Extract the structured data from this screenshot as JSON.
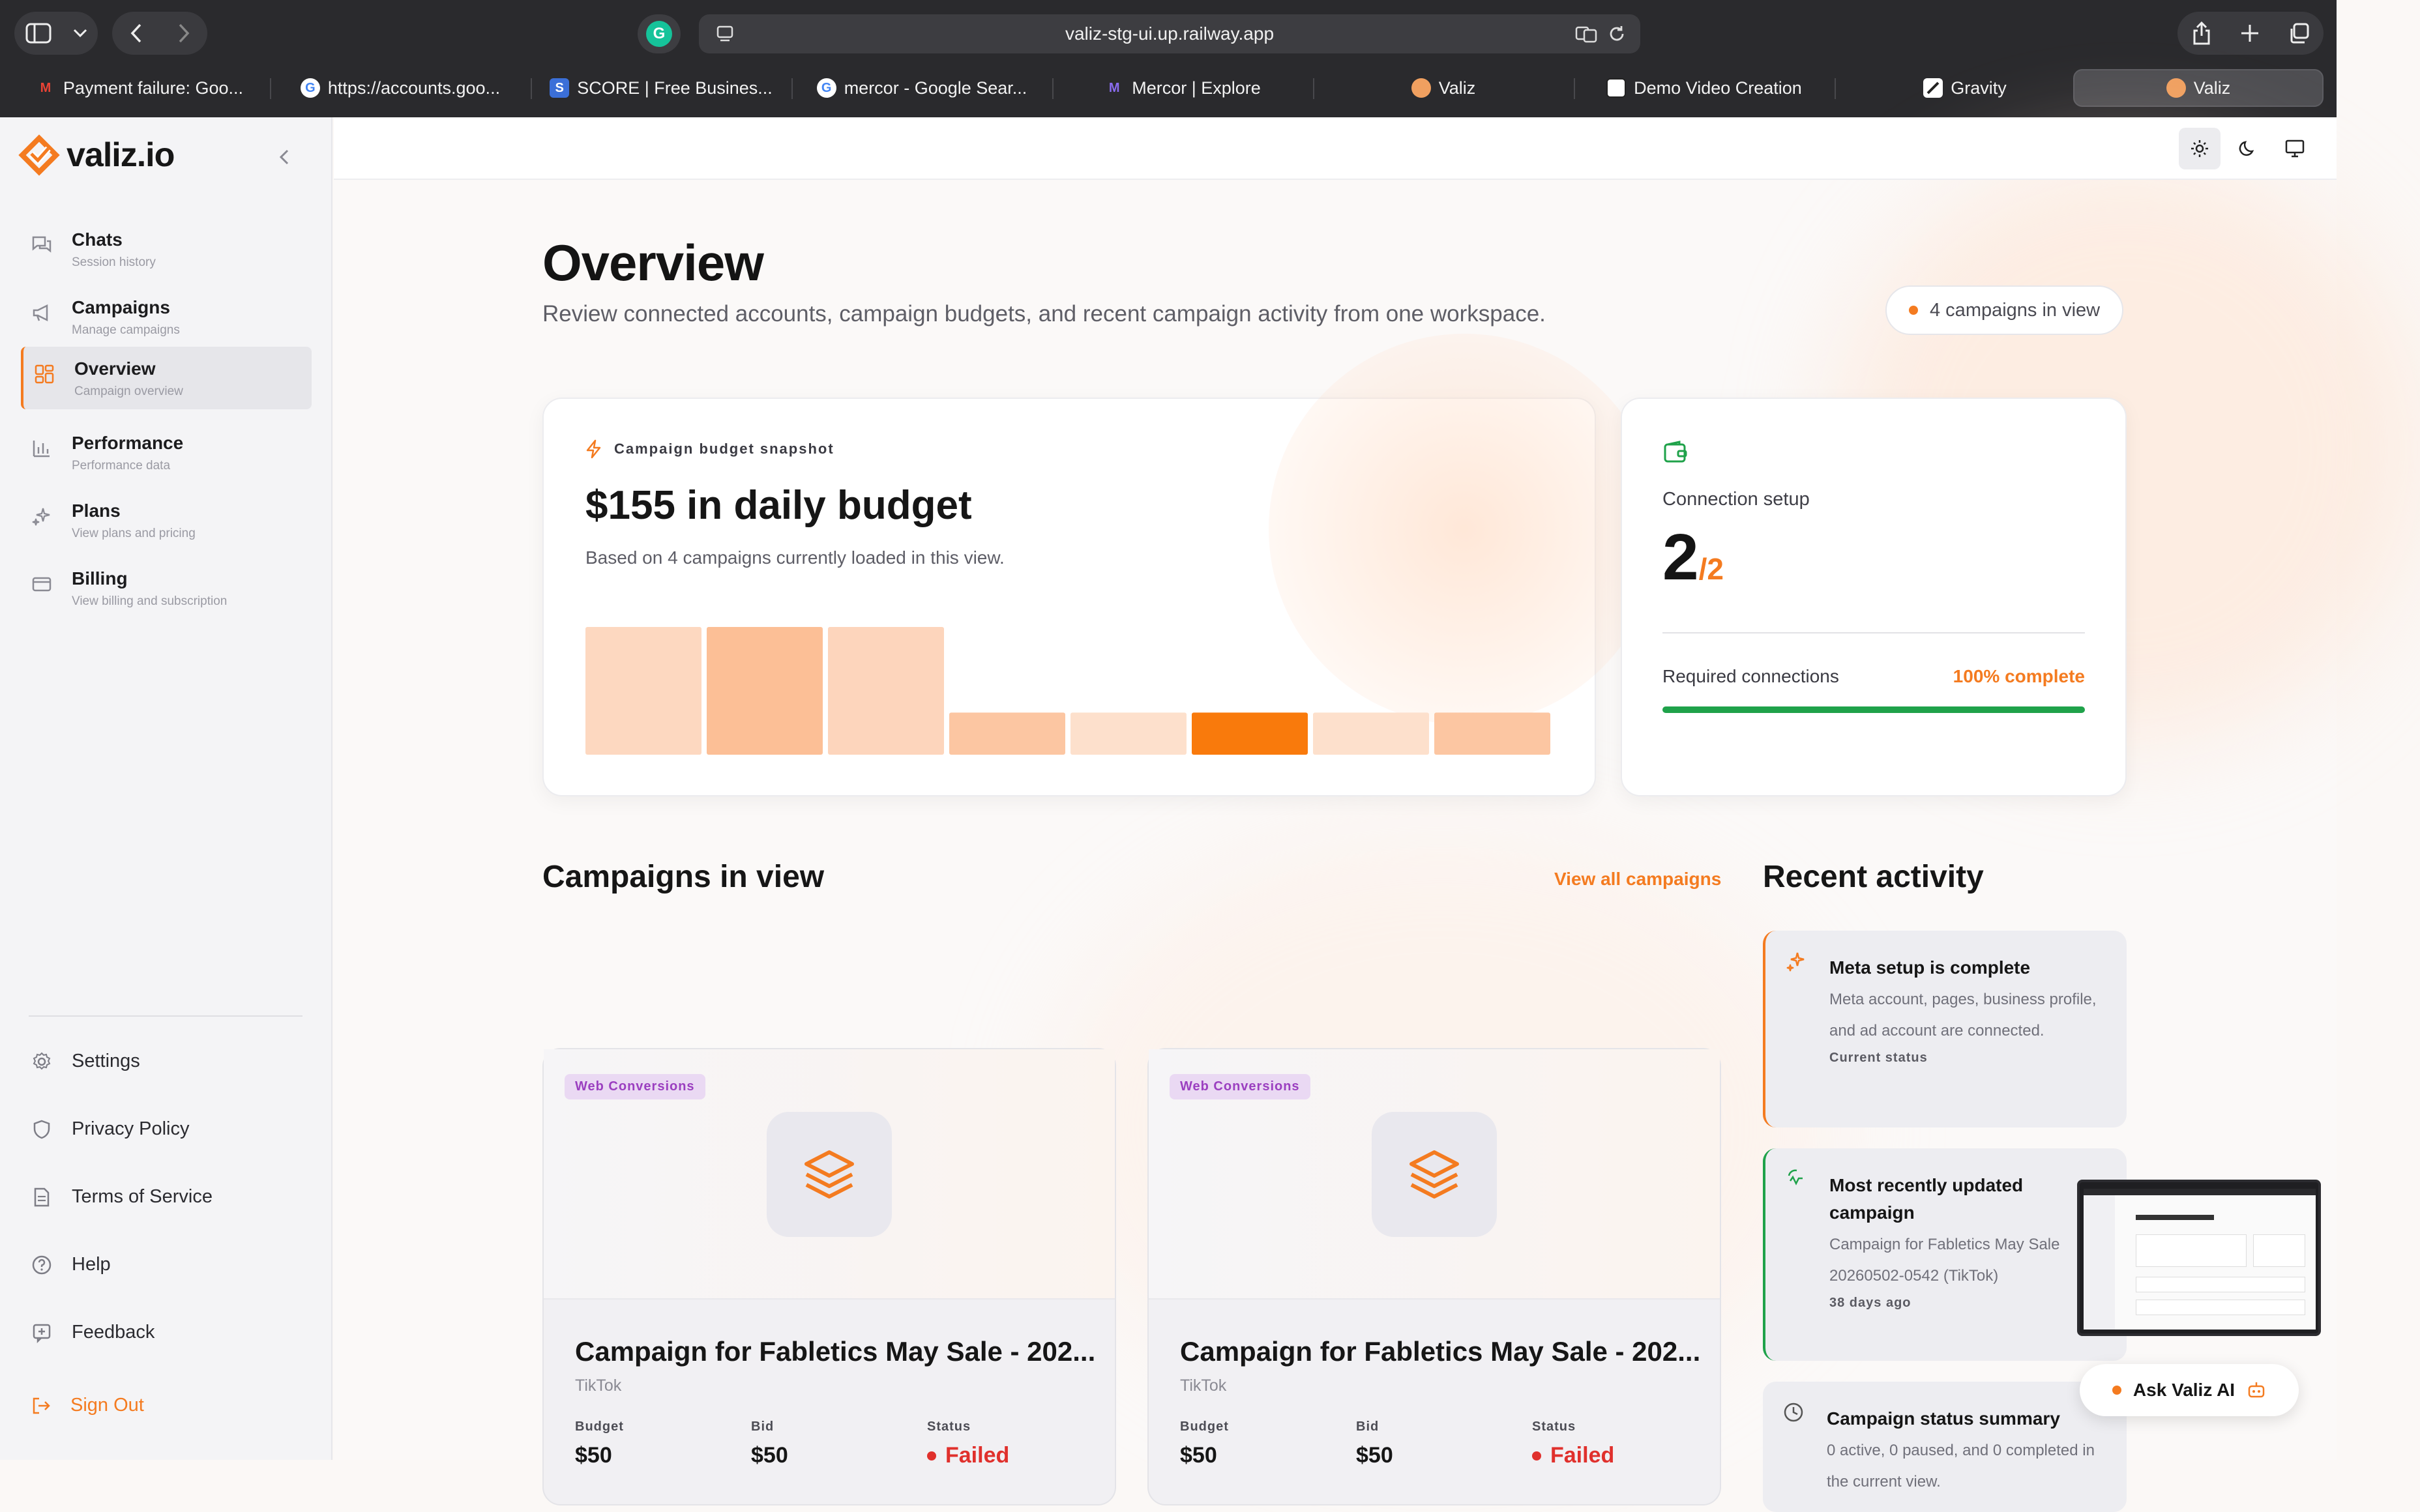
{
  "browser": {
    "url": "valiz-stg-ui.up.railway.app",
    "tabs": [
      {
        "label": "Payment failure: Goo...",
        "favicon": "gmail-icon"
      },
      {
        "label": "https://accounts.goo...",
        "favicon": "google-icon"
      },
      {
        "label": "SCORE | Free Busines...",
        "favicon": "score-icon"
      },
      {
        "label": "mercor - Google Sear...",
        "favicon": "google-icon"
      },
      {
        "label": "Mercor | Explore",
        "favicon": "mercor-icon"
      },
      {
        "label": "Valiz",
        "favicon": "valiz-icon"
      },
      {
        "label": "Demo Video Creation",
        "favicon": "openai-icon"
      },
      {
        "label": "Gravity",
        "favicon": "gravity-icon"
      },
      {
        "label": "Valiz",
        "favicon": "valiz-icon",
        "active": true
      }
    ]
  },
  "sidebar": {
    "brand": "valiz.io",
    "items": [
      {
        "label": "Chats",
        "sub": "Session history",
        "icon": "chat-icon"
      },
      {
        "label": "Campaigns",
        "sub": "Manage campaigns",
        "icon": "megaphone-icon"
      },
      {
        "label": "Overview",
        "sub": "Campaign overview",
        "icon": "grid-icon",
        "active": true
      },
      {
        "label": "Performance",
        "sub": "Performance data",
        "icon": "bar-chart-icon"
      },
      {
        "label": "Plans",
        "sub": "View plans and pricing",
        "icon": "sparkle-icon"
      },
      {
        "label": "Billing",
        "sub": "View billing and subscription",
        "icon": "card-icon"
      }
    ],
    "footer": [
      {
        "label": "Settings",
        "icon": "gear-icon"
      },
      {
        "label": "Privacy Policy",
        "icon": "shield-icon"
      },
      {
        "label": "Terms of Service",
        "icon": "document-icon"
      },
      {
        "label": "Help",
        "icon": "help-icon"
      },
      {
        "label": "Feedback",
        "icon": "feedback-icon"
      }
    ],
    "signout": "Sign Out"
  },
  "main": {
    "title": "Overview",
    "subtitle": "Review connected accounts, campaign budgets, and recent campaign activity from one workspace.",
    "campaign_count_pill": "4 campaigns in view",
    "budget": {
      "label": "Campaign budget snapshot",
      "headline": "$155 in daily budget",
      "sub": "Based on 4 campaigns currently loaded in this view.",
      "bar_levels": [
        1.0,
        1.0,
        1.0,
        0.33,
        0.33,
        0.33,
        0.33,
        0.33
      ],
      "bar_colors": [
        "#fdd8c0",
        "#fcbf96",
        "#fdd5bc",
        "#fcc6a2",
        "#fde0cc",
        "#f97a0c",
        "#fde0cc",
        "#fcc6a2"
      ]
    },
    "connection": {
      "title": "Connection setup",
      "count": "2",
      "total": "/2",
      "required_label": "Required connections",
      "percent_label": "100% complete",
      "progress": 1.0
    },
    "campaigns_heading": "Campaigns in view",
    "view_all": "View all campaigns",
    "campaigns": [
      {
        "tag": "Web Conversions",
        "title": "Campaign for Fabletics May Sale - 202...",
        "platform": "TikTok",
        "budget_label": "Budget",
        "budget": "$50",
        "bid_label": "Bid",
        "bid": "$50",
        "status_label": "Status",
        "status": "Failed"
      },
      {
        "tag": "Web Conversions",
        "title": "Campaign for Fabletics May Sale - 202...",
        "platform": "TikTok",
        "budget_label": "Budget",
        "budget": "$50",
        "bid_label": "Bid",
        "bid": "$50",
        "status_label": "Status",
        "status": "Failed"
      }
    ],
    "activity_heading": "Recent activity",
    "activity": [
      {
        "title": "Meta setup is complete",
        "body": "Meta account, pages, business profile, and ad account are connected.",
        "foot": "Current status",
        "accent": "#f47b20"
      },
      {
        "title": "Most recently updated campaign",
        "body": "Campaign for Fabletics May Sale 20260502-0542 (TikTok)",
        "foot": "38 days ago",
        "accent": "#1fa24a"
      },
      {
        "title": "Campaign status summary",
        "body": "0 active, 0 paused, and 0 completed in the current view.",
        "foot": "",
        "accent": ""
      }
    ],
    "ask_button": "Ask Valiz AI"
  }
}
